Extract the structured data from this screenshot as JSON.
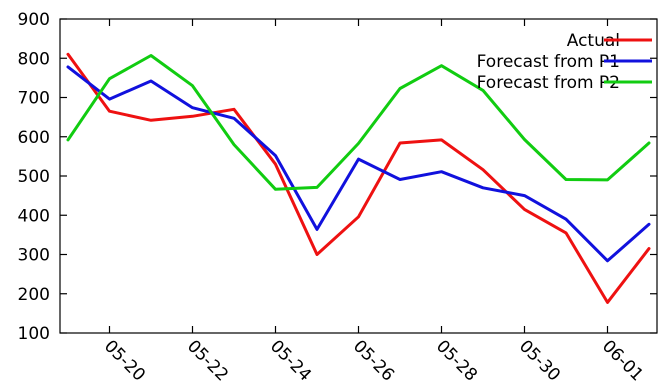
{
  "chart_data": {
    "type": "line",
    "title": "",
    "xlabel": "",
    "ylabel": "",
    "x": [
      "05-19",
      "05-20",
      "05-21",
      "05-22",
      "05-23",
      "05-24",
      "05-25",
      "05-26",
      "05-27",
      "05-28",
      "05-29",
      "05-30",
      "05-31",
      "06-01",
      "06-02"
    ],
    "x_tick_labels": [
      "05-20",
      "05-22",
      "05-24",
      "05-26",
      "05-28",
      "05-30",
      "06-01"
    ],
    "y_tick_labels": [
      "100",
      "200",
      "300",
      "400",
      "500",
      "600",
      "700",
      "800",
      "900"
    ],
    "ylim": [
      100,
      900
    ],
    "grid": false,
    "legend_position": "top-right",
    "series": [
      {
        "name": "Actual",
        "color": "#ee1111",
        "values": [
          810,
          665,
          642,
          652,
          670,
          530,
          300,
          396,
          584,
          592,
          516,
          415,
          355,
          178,
          315
        ]
      },
      {
        "name": "Forecast from P1",
        "color": "#1111dd",
        "values": [
          778,
          696,
          742,
          674,
          647,
          552,
          364,
          543,
          491,
          511,
          470,
          450,
          390,
          284,
          377
        ]
      },
      {
        "name": "Forecast from P2",
        "color": "#11cc11",
        "values": [
          592,
          748,
          807,
          730,
          580,
          466,
          471,
          583,
          723,
          781,
          718,
          593,
          491,
          490,
          584
        ]
      }
    ]
  }
}
